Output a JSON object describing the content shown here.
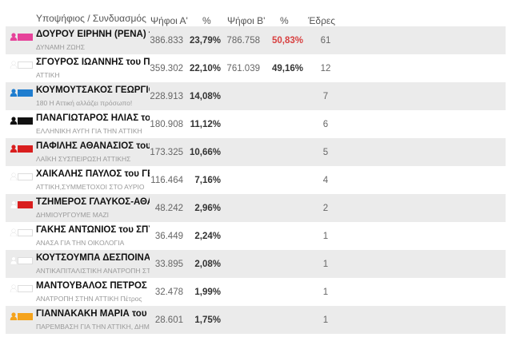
{
  "header": {
    "candidate": "Υποψήφιος / Συνδυασμός",
    "votes_a": "Ψήφοι Α'",
    "pct_a": "%",
    "votes_b": "Ψήφοι Β'",
    "pct_b": "%",
    "seats": "Έδρες"
  },
  "rows": [
    {
      "name": "ΔΟΥΡΟΥ ΕΙΡΗΝΗ (ΡΕΝΑ) του",
      "party": "ΔΥΝΑΜΗ ΖΩΗΣ",
      "votes_a": "386.833",
      "pct_a": "23,79%",
      "votes_b": "786.758",
      "pct_b": "50,83%",
      "seats": "61",
      "color": "#e6429a",
      "person": "#e6429a",
      "winner": true
    },
    {
      "name": "ΣΓΟΥΡΟΣ ΙΩΑΝΝΗΣ του ΠΑΝ",
      "party": "ΑΤΤΙΚΗ",
      "votes_a": "359.302",
      "pct_a": "22,10%",
      "votes_b": "761.039",
      "pct_b": "49,16%",
      "seats": "12",
      "color": "#ffffff",
      "person": "#ffffff"
    },
    {
      "name": "ΚΟΥΜΟΥΤΣΑΚΟΣ ΓΕΩΡΓΙΟΣ τ",
      "party": "180 Η Αττική αλλάζει πρόσωπο!",
      "votes_a": "228.913",
      "pct_a": "14,08%",
      "seats": "7",
      "color": "#1f7dcf",
      "person": "#1f7dcf"
    },
    {
      "name": "ΠΑΝΑΓΙΩΤΑΡΟΣ ΗΛΙΑΣ του Κ",
      "party": "ΕΛΛΗΝΙΚΗ ΑΥΓΗ ΓΙΑ ΤΗΝ ΑΤΤΙΚΗ",
      "votes_a": "180.908",
      "pct_a": "11,12%",
      "seats": "6",
      "color": "#111111",
      "person": "#111111"
    },
    {
      "name": "ΠΑΦΙΛΗΣ ΑΘΑΝΑΣΙΟΣ του ΣΓ",
      "party": "ΛΑΪΚΗ ΣΥΣΠΕΙΡΩΣΗ ΑΤΤΙΚΗΣ",
      "votes_a": "173.325",
      "pct_a": "10,66%",
      "seats": "5",
      "color": "#d91e1e",
      "person": "#d91e1e"
    },
    {
      "name": "ΧΑΪΚΑΛΗΣ ΠΑΥΛΟΣ του ΓΕΩΙ",
      "party": "ΑΤΤΙΚΗ,ΣΥΜΜΕΤΟΧΟΙ ΣΤΟ ΑΥΡΙΟ",
      "votes_a": "116.464",
      "pct_a": "7,16%",
      "seats": "4",
      "color": "#ffffff",
      "person": "#ffffff"
    },
    {
      "name": "ΤΖΗΜΕΡΟΣ ΓΛΑΥΚΟΣ-ΑΘΑΝΑ",
      "party": "ΔΗΜΙΟΥΡΓΟΥΜΕ ΜΑΖΙ",
      "votes_a": "48.242",
      "pct_a": "2,96%",
      "seats": "2",
      "color": "#d91e1e",
      "person": "#ffffff"
    },
    {
      "name": "ΓΑΚΗΣ ΑΝΤΩΝΙΟΣ του ΣΠΥΡΙ",
      "party": "ΑΝΑΣΑ ΓΙΑ ΤΗΝ ΟΙΚΟΛΟΓΙΑ",
      "votes_a": "36.449",
      "pct_a": "2,24%",
      "seats": "1",
      "color": "#ffffff",
      "person": "#ffffff"
    },
    {
      "name": "ΚΟΥΤΣΟΥΜΠΑ ΔΕΣΠΟΙΝΑ του",
      "party": "ΑΝΤΙΚΑΠΙΤΑΛΙΣΤΙΚΗ ΑΝΑΤΡΟΠΗ ΣΤΗΝ ΑΤΤΙΚΗ",
      "votes_a": "33.895",
      "pct_a": "2,08%",
      "seats": "1",
      "color": "#ffffff",
      "person": "#ffffff"
    },
    {
      "name": "ΜΑΝΤΟΥΒΑΛΟΣ ΠΕΤΡΟΣ του",
      "party": "ΑΝΑΤΡΟΠΗ ΣΤΗΝ ΑΤΤΙΚΗ Πέτρος",
      "votes_a": "32.478",
      "pct_a": "1,99%",
      "seats": "1",
      "color": "#ffffff",
      "person": "#ffffff"
    },
    {
      "name": "ΓΙΑΝΝΑΚΑΚΗ ΜΑΡΙΑ του ΓΕΩ",
      "party": "ΠΑΡΕΜΒΑΣΗ ΓΙΑ ΤΗΝ ΑΤΤΙΚΗ, ΔΗΜΟΚΡΑΤΙΑ",
      "votes_a": "28.601",
      "pct_a": "1,75%",
      "seats": "1",
      "color": "#f5a31c",
      "person": "#f5a31c"
    }
  ]
}
